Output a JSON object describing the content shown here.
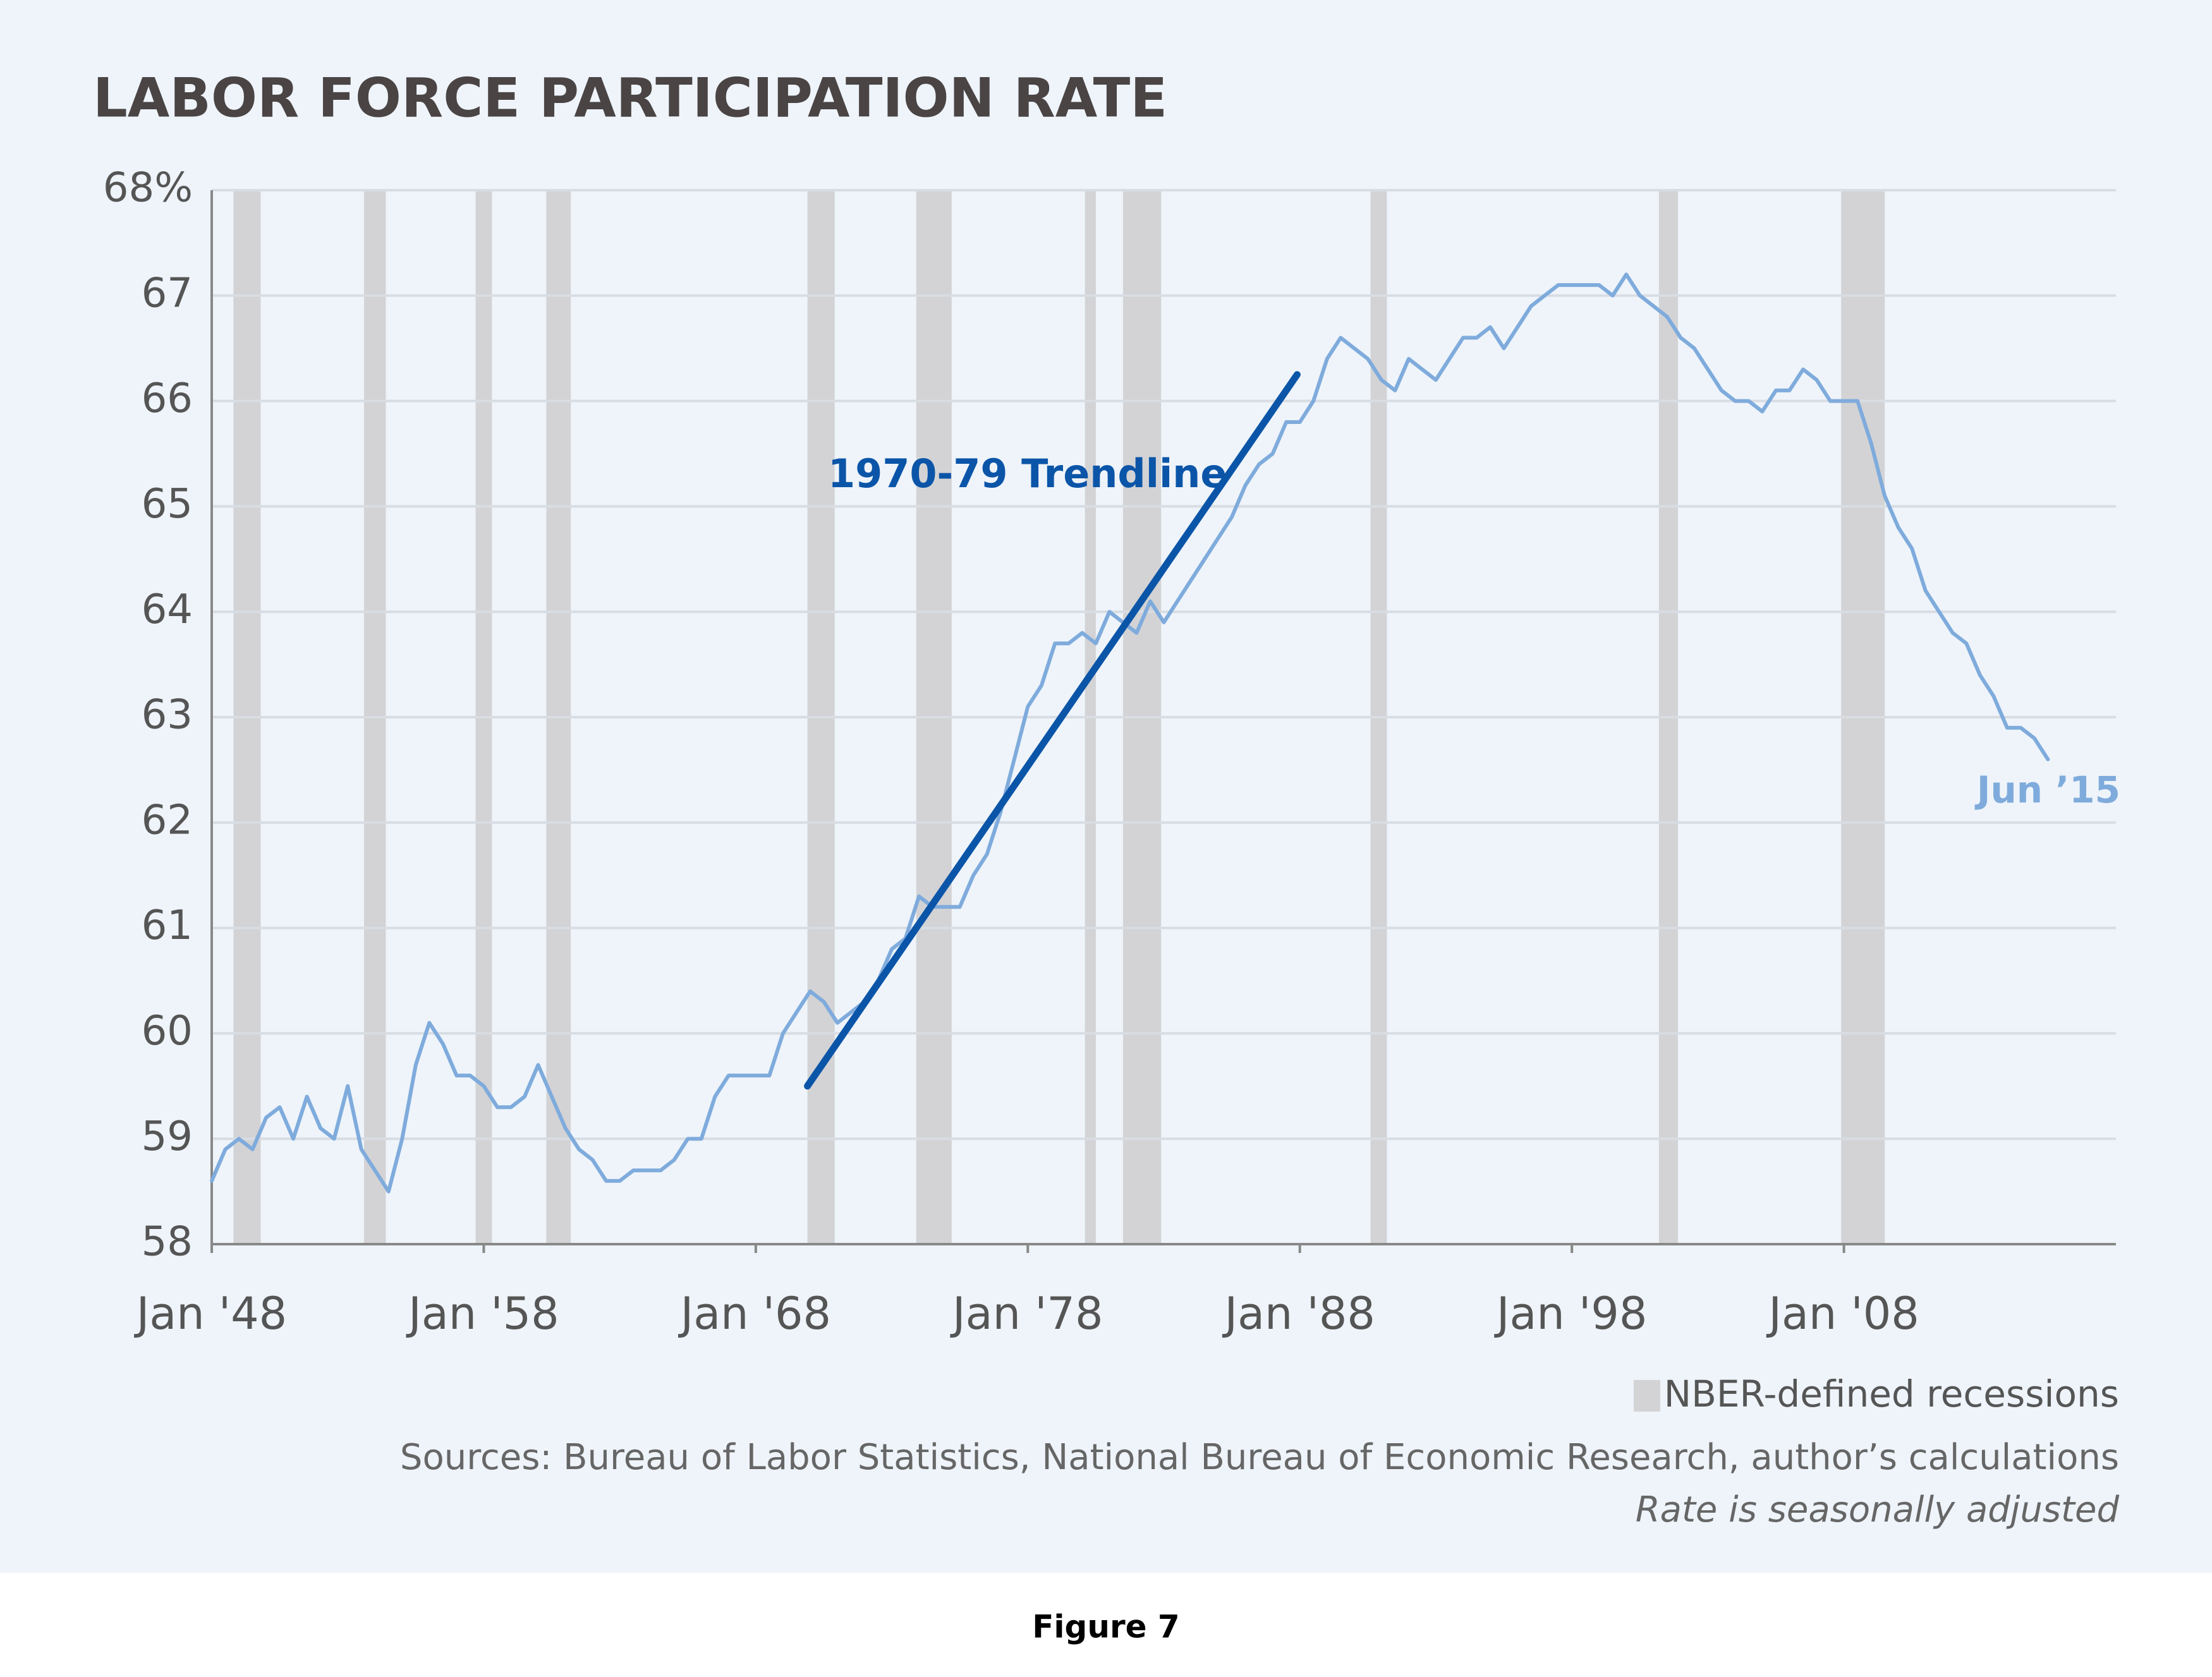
{
  "chart_data": {
    "type": "line",
    "title": "LABOR FORCE PARTICIPATION RATE",
    "xlim": [
      1948,
      2018
    ],
    "ylim": [
      58,
      68
    ],
    "xticks": [
      {
        "value": 1948,
        "label": "Jan '48"
      },
      {
        "value": 1958,
        "label": "Jan '58"
      },
      {
        "value": 1968,
        "label": "Jan '68"
      },
      {
        "value": 1978,
        "label": "Jan '78"
      },
      {
        "value": 1988,
        "label": "Jan '88"
      },
      {
        "value": 1998,
        "label": "Jan '98"
      },
      {
        "value": 2008,
        "label": "Jan '08"
      }
    ],
    "yticks": [
      58,
      59,
      60,
      61,
      62,
      63,
      64,
      65,
      66,
      67,
      {
        "value": 68,
        "label": "68%"
      }
    ],
    "grid": true,
    "recessions": [
      [
        1948.8,
        1949.8
      ],
      [
        1953.6,
        1954.4
      ],
      [
        1957.7,
        1958.3
      ],
      [
        1960.3,
        1961.2
      ],
      [
        1969.9,
        1970.9
      ],
      [
        1973.9,
        1975.2
      ],
      [
        1980.1,
        1980.5
      ],
      [
        1981.5,
        1982.9
      ],
      [
        1990.6,
        1991.2
      ],
      [
        2001.2,
        2001.9
      ],
      [
        2007.9,
        2009.5
      ]
    ],
    "recession_color": "#d3d3d5",
    "recession_label": "NBER-defined recessions",
    "series": [
      {
        "color": "#7fabdc",
        "x": [
          1948,
          1948.5,
          1949,
          1949.5,
          1950,
          1950.5,
          1951,
          1951.5,
          1952,
          1952.5,
          1953,
          1953.5,
          1954,
          1954.5,
          1955,
          1955.5,
          1956,
          1956.5,
          1957,
          1957.5,
          1958,
          1958.5,
          1959,
          1959.5,
          1960,
          1960.5,
          1961,
          1961.5,
          1962,
          1962.5,
          1963,
          1963.5,
          1964,
          1964.5,
          1965,
          1965.5,
          1966,
          1966.5,
          1967,
          1967.5,
          1968,
          1968.5,
          1969,
          1969.5,
          1970,
          1970.5,
          1971,
          1971.5,
          1972,
          1972.5,
          1973,
          1973.5,
          1974,
          1974.5,
          1975,
          1975.5,
          1976,
          1976.5,
          1977,
          1977.5,
          1978,
          1978.5,
          1979,
          1979.5,
          1980,
          1980.5,
          1981,
          1981.5,
          1982,
          1982.5,
          1983,
          1983.5,
          1984,
          1984.5,
          1985,
          1985.5,
          1986,
          1986.5,
          1987,
          1987.5,
          1988,
          1988.5,
          1989,
          1989.5,
          1990,
          1990.5,
          1991,
          1991.5,
          1992,
          1992.5,
          1993,
          1993.5,
          1994,
          1994.5,
          1995,
          1995.5,
          1996,
          1996.5,
          1997,
          1997.5,
          1998,
          1998.5,
          1999,
          1999.5,
          2000,
          2000.5,
          2001,
          2001.5,
          2002,
          2002.5,
          2003,
          2003.5,
          2004,
          2004.5,
          2005,
          2005.5,
          2006,
          2006.5,
          2007,
          2007.5,
          2008,
          2008.5,
          2009,
          2009.5,
          2010,
          2010.5,
          2011,
          2011.5,
          2012,
          2012.5,
          2013,
          2013.5,
          2014,
          2014.5,
          2015,
          2015.5
        ],
        "values": [
          58.6,
          58.9,
          59.0,
          58.9,
          59.2,
          59.3,
          59.0,
          59.4,
          59.1,
          59.0,
          59.5,
          58.9,
          58.7,
          58.5,
          59.0,
          59.7,
          60.1,
          59.9,
          59.6,
          59.6,
          59.5,
          59.3,
          59.3,
          59.4,
          59.7,
          59.4,
          59.1,
          58.9,
          58.8,
          58.6,
          58.6,
          58.7,
          58.7,
          58.7,
          58.8,
          59.0,
          59.0,
          59.4,
          59.6,
          59.6,
          59.6,
          59.6,
          60.0,
          60.2,
          60.4,
          60.3,
          60.1,
          60.2,
          60.3,
          60.5,
          60.8,
          60.9,
          61.3,
          61.2,
          61.2,
          61.2,
          61.5,
          61.7,
          62.1,
          62.6,
          63.1,
          63.3,
          63.7,
          63.7,
          63.8,
          63.7,
          64.0,
          63.9,
          63.8,
          64.1,
          63.9,
          64.1,
          64.3,
          64.5,
          64.7,
          64.9,
          65.2,
          65.4,
          65.5,
          65.8,
          65.8,
          66.0,
          66.4,
          66.6,
          66.5,
          66.4,
          66.2,
          66.1,
          66.4,
          66.3,
          66.2,
          66.4,
          66.6,
          66.6,
          66.7,
          66.5,
          66.7,
          66.9,
          67.0,
          67.1,
          67.1,
          67.1,
          67.1,
          67.0,
          67.2,
          67.0,
          66.9,
          66.8,
          66.6,
          66.5,
          66.3,
          66.1,
          66.0,
          66.0,
          65.9,
          66.1,
          66.1,
          66.3,
          66.2,
          66.0,
          66.0,
          66.0,
          65.6,
          65.1,
          64.8,
          64.6,
          64.2,
          64.0,
          63.8,
          63.7,
          63.4,
          63.2,
          62.9,
          62.9,
          62.8,
          62.6
        ]
      },
      {
        "name": "1970-79 Trendline",
        "color": "#0b55a8",
        "x": [
          1969.9,
          1987.9
        ],
        "values": [
          59.5,
          66.25
        ]
      }
    ],
    "end_label": "Jun ’15",
    "sources": "Sources: Bureau of Labor Statistics, National Bureau of Economic Research, author’s calculations",
    "note": "Rate is seasonally adjusted"
  },
  "caption": "Figure 7"
}
